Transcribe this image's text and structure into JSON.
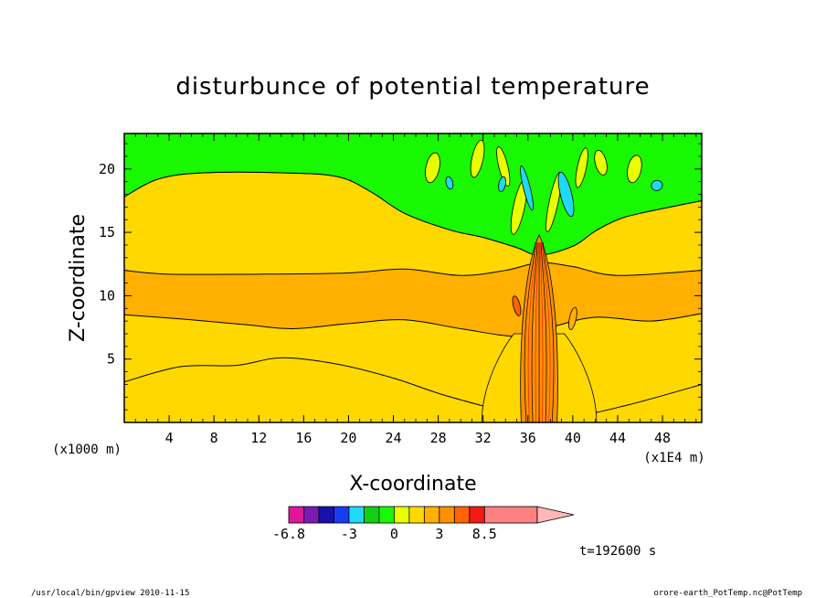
{
  "chart_data": {
    "type": "heatmap",
    "title": "disturbunce of potential temperature",
    "xlabel": "X-coordinate",
    "ylabel": "Z-coordinate",
    "x_unit_label": "(x1E4 m)",
    "y_unit_label": "(x1000 m)",
    "xlim": [
      0,
      51.5
    ],
    "ylim": [
      0,
      22.8
    ],
    "x_ticks": [
      "4",
      "8",
      "12",
      "16",
      "20",
      "24",
      "28",
      "32",
      "36",
      "40",
      "44",
      "48"
    ],
    "y_ticks": [
      "5",
      "10",
      "15",
      "20"
    ],
    "x_tick_values": [
      4,
      8,
      12,
      16,
      20,
      24,
      28,
      32,
      36,
      40,
      44,
      48
    ],
    "y_tick_values": [
      5,
      10,
      15,
      20
    ],
    "grid": false,
    "colorbar": {
      "tick_labels": [
        "-6.8",
        "-3",
        "0",
        "3",
        "8.5"
      ],
      "tick_values": [
        -6.8,
        -3,
        0,
        3,
        8.5
      ],
      "levels": [
        -6.8,
        -6,
        -5,
        -4,
        -3,
        -2,
        -1,
        0,
        1,
        2,
        3,
        4,
        5,
        8.5
      ],
      "colors": [
        "#e0169a",
        "#7a1ab4",
        "#1810a8",
        "#1a3cf0",
        "#20d8f8",
        "#10d010",
        "#18f800",
        "#e8ff00",
        "#ffd800",
        "#ffb000",
        "#ff9000",
        "#ff6400",
        "#f01c14",
        "#ff8080"
      ],
      "overflow_color": "#ffb8b8"
    },
    "layers": [
      {
        "value_band": "1 to 2",
        "color": "#ffd800",
        "bottom": [
          [
            0,
            3.2
          ],
          [
            5,
            4.4
          ],
          [
            10,
            4.5
          ],
          [
            14,
            5.1
          ],
          [
            19,
            4.6
          ],
          [
            24,
            3.5
          ],
          [
            28,
            2.3
          ],
          [
            32,
            1.3
          ],
          [
            35,
            0.6
          ],
          [
            40,
            0.5
          ],
          [
            45,
            1.4
          ],
          [
            51.5,
            3.0
          ]
        ]
      },
      {
        "value_band": "2 to 3",
        "color": "#ffb000",
        "bottom": [
          [
            0,
            8.5
          ],
          [
            6,
            8.1
          ],
          [
            11,
            7.7
          ],
          [
            15,
            7.4
          ],
          [
            20,
            7.8
          ],
          [
            25,
            8.1
          ],
          [
            30,
            7.4
          ],
          [
            35,
            6.8
          ],
          [
            38,
            7.5
          ],
          [
            42,
            8.3
          ],
          [
            47,
            8.0
          ],
          [
            51.5,
            8.6
          ]
        ]
      },
      {
        "value_band": "1 to 2",
        "color": "#ffd800",
        "bottom": [
          [
            0,
            12.0
          ],
          [
            4,
            11.7
          ],
          [
            12,
            11.7
          ],
          [
            20,
            11.8
          ],
          [
            25,
            12.1
          ],
          [
            30,
            11.6
          ],
          [
            34,
            12.0
          ],
          [
            37,
            12.6
          ],
          [
            40,
            12.3
          ],
          [
            44,
            11.6
          ],
          [
            51.5,
            12.0
          ]
        ]
      },
      {
        "value_band": "0 to 1",
        "color": "#e8ff00",
        "bottom": [
          [
            0,
            17.8
          ],
          [
            3,
            19.2
          ],
          [
            7,
            19.7
          ],
          [
            14,
            19.7
          ],
          [
            19,
            19.4
          ],
          [
            22,
            18.2
          ],
          [
            25,
            16.5
          ],
          [
            29,
            15.2
          ],
          [
            32,
            14.6
          ],
          [
            35,
            13.8
          ],
          [
            37,
            13.2
          ],
          [
            40,
            13.9
          ],
          [
            42,
            15.1
          ],
          [
            44,
            16.0
          ],
          [
            46,
            16.5
          ],
          [
            51.5,
            17.5
          ]
        ]
      }
    ],
    "convective_column": {
      "x_center": 37,
      "x_half_width": 1.6,
      "z_top": 14.8
    }
  },
  "footer": {
    "left": "/usr/local/bin/gpview  2010-11-15",
    "right": "orore-earth_PotTemp.nc@PotTemp",
    "time": "t=192600 s"
  }
}
